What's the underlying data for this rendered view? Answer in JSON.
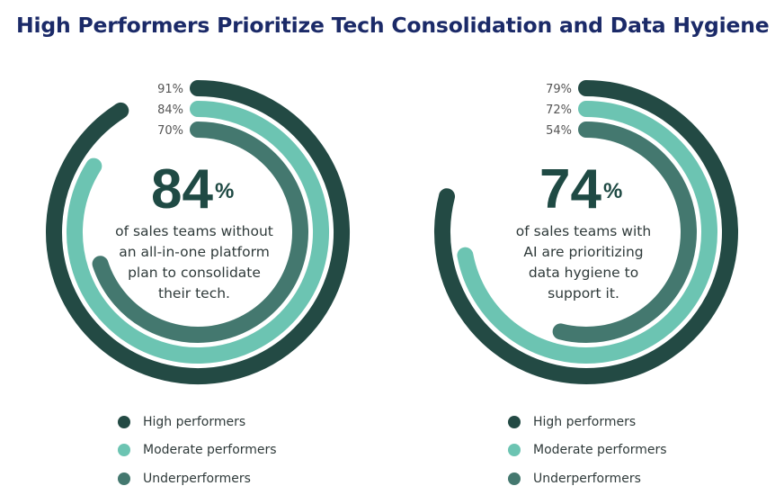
{
  "title": "High Performers Prioritize Tech Consolidation and Data Hygiene",
  "colors": {
    "high": "#234a44",
    "moderate": "#6cc4b2",
    "under": "#44786f",
    "title": "#1b2a68"
  },
  "chart_data": [
    {
      "type": "radial-bar",
      "title": "High Performers Prioritize Tech Consolidation and Data Hygiene",
      "categories": [
        "High performers",
        "Moderate performers",
        "Underperformers"
      ],
      "values": [
        91,
        84,
        70
      ],
      "value_labels": [
        "91%",
        "84%",
        "70%"
      ],
      "headline_value": "84",
      "headline_unit": "%",
      "description_lines": [
        "of sales teams without",
        "an all-in-one platform",
        "plan to consolidate",
        "their tech."
      ],
      "legend": [
        "High performers",
        "Moderate performers",
        "Underperformers"
      ],
      "range": [
        0,
        100
      ]
    },
    {
      "type": "radial-bar",
      "title": "High Performers Prioritize Tech Consolidation and Data Hygiene",
      "categories": [
        "High performers",
        "Moderate performers",
        "Underperformers"
      ],
      "values": [
        79,
        72,
        54
      ],
      "value_labels": [
        "79%",
        "72%",
        "54%"
      ],
      "headline_value": "74",
      "headline_unit": "%",
      "description_lines": [
        "of sales teams with",
        "AI are prioritizing",
        "data hygiene to",
        "support it."
      ],
      "legend": [
        "High performers",
        "Moderate performers",
        "Underperformers"
      ],
      "range": [
        0,
        100
      ]
    }
  ]
}
